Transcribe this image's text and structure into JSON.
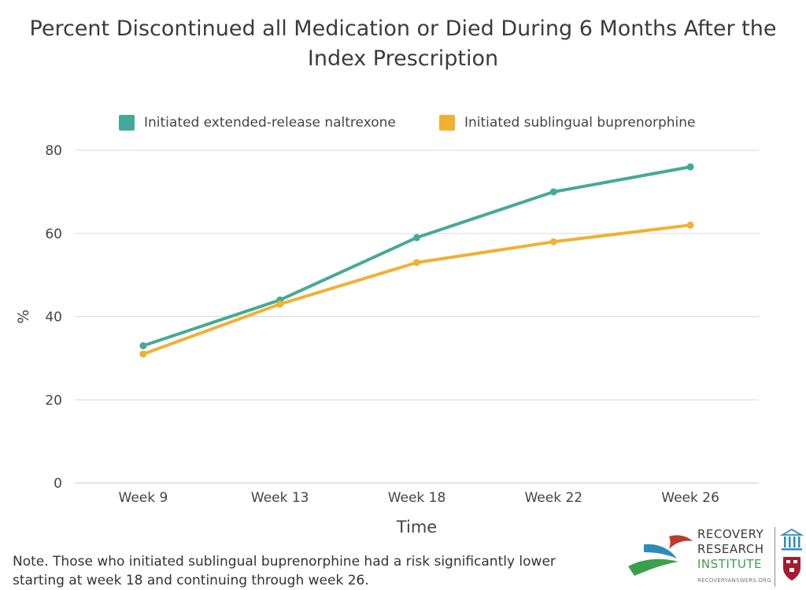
{
  "title_lines": [
    "Percent Discontinued all Medication or Died During 6 Months After the",
    "Index Prescription"
  ],
  "note_lines": [
    "Note. Those who initiated sublingual buprenorphine had a risk significantly lower",
    "starting at week 18 and continuing through week 26."
  ],
  "logo": {
    "line1": "RECOVERY",
    "line2": "RESEARCH",
    "line3": "INSTITUTE",
    "url": "RECOVERYANSWERS.ORG"
  },
  "colors": {
    "naltrexone": "#45a997",
    "buprenorphine": "#f1b032",
    "grid": "#d9d9d9",
    "axis_text": "#444444"
  },
  "chart_data": {
    "type": "line",
    "title": "Percent Discontinued all Medication or Died During 6 Months After the Index Prescription",
    "xlabel": "Time",
    "ylabel": "%",
    "categories": [
      "Week 9",
      "Week 13",
      "Week 18",
      "Week 22",
      "Week 26"
    ],
    "series": [
      {
        "name": "Initiated extended-release naltrexone",
        "values": [
          33,
          44,
          59,
          70,
          76
        ]
      },
      {
        "name": "Initiated sublingual buprenorphine",
        "values": [
          31,
          43,
          53,
          58,
          62
        ]
      }
    ],
    "ylim": [
      0,
      80
    ],
    "yticks": [
      0,
      20,
      40,
      60,
      80
    ],
    "grid": true,
    "legend_position": "top"
  }
}
